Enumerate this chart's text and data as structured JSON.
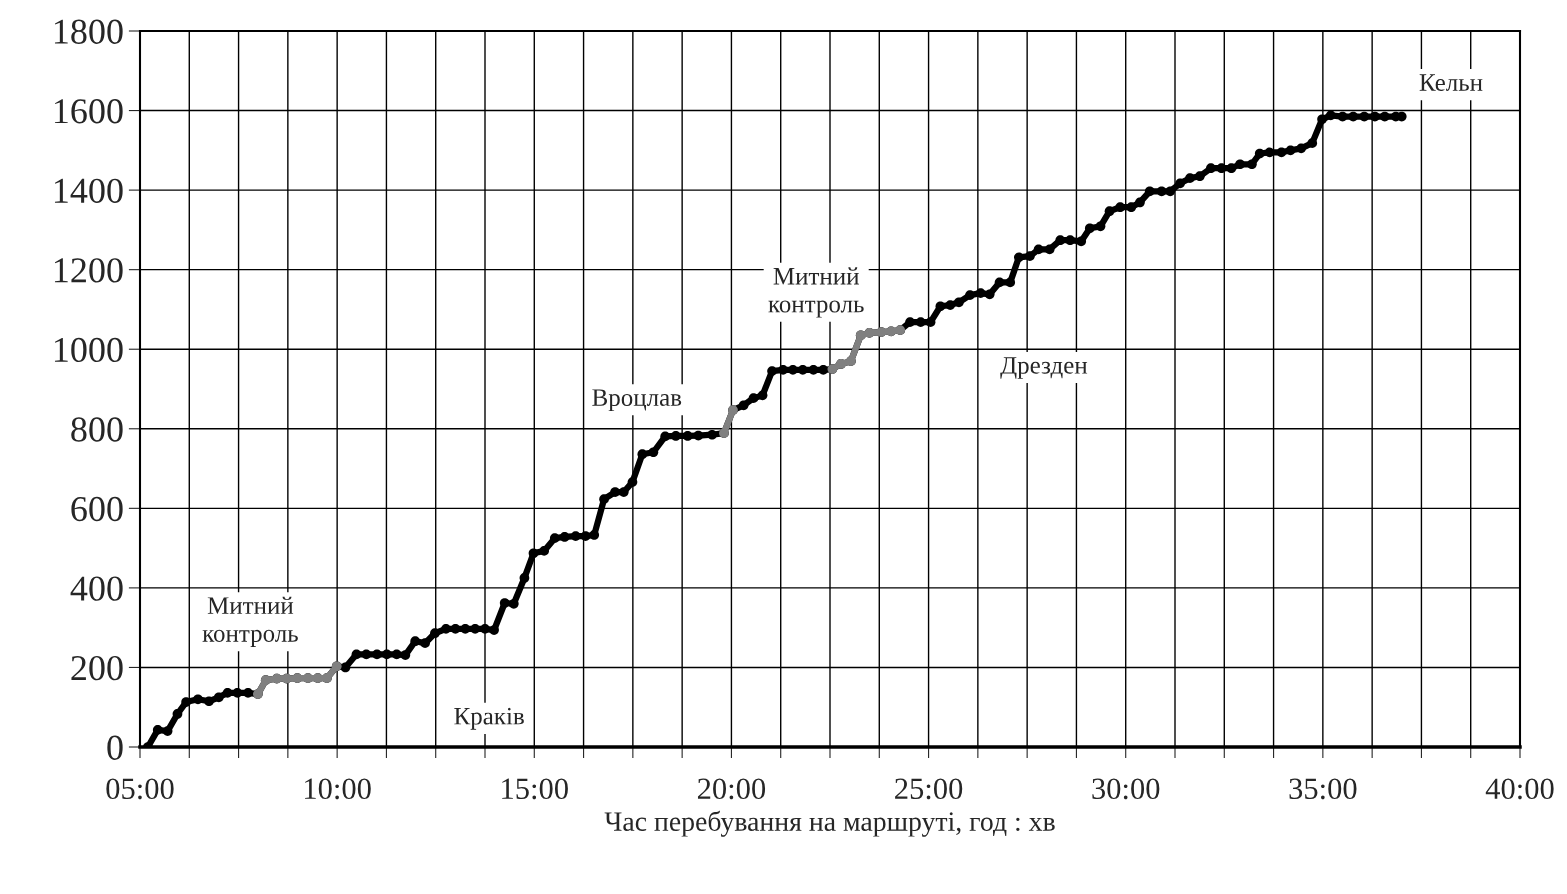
{
  "chart_data": {
    "type": "line",
    "xlabel": "Час перебування на маршруті, год : хв",
    "xlim": [
      5,
      40
    ],
    "ylim": [
      0,
      1800
    ],
    "xticks": [
      {
        "value": 5,
        "label": "05:00"
      },
      {
        "value": 6.25,
        "label": null
      },
      {
        "value": 7.5,
        "label": null
      },
      {
        "value": 8.75,
        "label": null
      },
      {
        "value": 10,
        "label": "10:00"
      },
      {
        "value": 11.25,
        "label": null
      },
      {
        "value": 12.5,
        "label": null
      },
      {
        "value": 13.75,
        "label": null
      },
      {
        "value": 15,
        "label": "15:00"
      },
      {
        "value": 16.25,
        "label": null
      },
      {
        "value": 17.5,
        "label": null
      },
      {
        "value": 18.75,
        "label": null
      },
      {
        "value": 20,
        "label": "20:00"
      },
      {
        "value": 21.25,
        "label": null
      },
      {
        "value": 22.5,
        "label": null
      },
      {
        "value": 23.75,
        "label": null
      },
      {
        "value": 25,
        "label": "25:00"
      },
      {
        "value": 26.25,
        "label": null
      },
      {
        "value": 27.5,
        "label": null
      },
      {
        "value": 28.75,
        "label": null
      },
      {
        "value": 30,
        "label": "30:00"
      },
      {
        "value": 31.25,
        "label": null
      },
      {
        "value": 32.5,
        "label": null
      },
      {
        "value": 33.75,
        "label": null
      },
      {
        "value": 35,
        "label": "35:00"
      },
      {
        "value": 36.25,
        "label": null
      },
      {
        "value": 37.5,
        "label": null
      },
      {
        "value": 38.75,
        "label": null
      },
      {
        "value": 40,
        "label": "40:00"
      }
    ],
    "yticks": [
      0,
      200,
      400,
      600,
      800,
      1000,
      1200,
      1400,
      1600,
      1800
    ],
    "grid": true,
    "marker": "circle",
    "line_style": "solid",
    "series": [
      {
        "color": "#000000",
        "x": [
          5.2,
          5.45,
          5.7,
          5.95,
          6.17,
          6.47,
          6.75,
          7.0,
          7.22,
          7.47,
          7.74,
          7.99,
          8.19,
          8.47,
          8.72,
          8.99,
          9.26,
          9.51,
          9.74,
          9.99,
          10.21,
          10.49,
          10.74,
          11.01,
          11.26,
          11.51,
          11.73,
          11.98,
          12.23,
          12.48,
          12.76,
          13.0,
          13.25,
          13.5,
          13.75,
          13.98,
          14.25,
          14.48,
          14.75,
          14.98,
          15.25,
          15.52,
          15.77,
          16.05,
          16.3,
          16.52,
          16.77,
          17.05,
          17.27,
          17.49,
          17.74,
          18.02,
          18.32,
          18.59,
          18.89,
          19.16,
          19.51,
          19.81,
          20.04,
          20.31,
          20.56,
          20.79,
          21.03,
          21.31,
          21.56,
          21.81,
          22.08,
          22.33,
          22.56,
          22.78,
          23.03,
          23.28,
          23.5,
          23.8,
          24.05,
          24.28,
          24.53,
          24.8,
          25.05,
          25.3,
          25.55,
          25.77,
          26.05,
          26.32,
          26.55,
          26.8,
          27.07,
          27.29,
          27.57,
          27.79,
          28.07,
          28.34,
          28.59,
          28.87,
          29.09,
          29.36,
          29.59,
          29.86,
          30.14,
          30.36,
          30.61,
          30.91,
          31.13,
          31.38,
          31.63,
          31.88,
          32.16,
          32.43,
          32.68,
          32.9,
          33.2,
          33.4,
          33.65,
          33.95,
          34.18,
          34.45,
          34.73,
          34.98,
          35.2,
          35.5,
          35.77,
          36.05,
          36.32,
          36.57,
          36.85,
          37.0
        ],
        "values": [
          0,
          43,
          40,
          83,
          113,
          120,
          115,
          125,
          136,
          136,
          136,
          133,
          168,
          172,
          172,
          173,
          173,
          173,
          173,
          203,
          200,
          233,
          233,
          233,
          233,
          233,
          231,
          266,
          261,
          286,
          297,
          297,
          297,
          297,
          297,
          294,
          362,
          360,
          425,
          487,
          493,
          525,
          528,
          530,
          530,
          533,
          623,
          641,
          641,
          666,
          736,
          741,
          781,
          782,
          782,
          783,
          785,
          789,
          847,
          859,
          877,
          884,
          945,
          948,
          948,
          948,
          948,
          948,
          950,
          963,
          970,
          1035,
          1041,
          1043,
          1045,
          1048,
          1068,
          1068,
          1068,
          1108,
          1111,
          1118,
          1136,
          1141,
          1138,
          1168,
          1168,
          1231,
          1234,
          1251,
          1251,
          1274,
          1274,
          1271,
          1304,
          1309,
          1347,
          1357,
          1357,
          1369,
          1397,
          1397,
          1397,
          1417,
          1430,
          1435,
          1455,
          1455,
          1455,
          1465,
          1465,
          1492,
          1495,
          1495,
          1500,
          1505,
          1518,
          1578,
          1588,
          1585,
          1585,
          1585,
          1585,
          1585,
          1585,
          1585
        ]
      },
      {
        "color": "#808080",
        "x": [
          7.99,
          8.19,
          8.47,
          8.72,
          8.99,
          9.26,
          9.51,
          9.74,
          9.99
        ],
        "values": [
          133,
          168,
          172,
          172,
          173,
          173,
          173,
          173,
          203
        ]
      },
      {
        "color": "#808080",
        "x": [
          19.81,
          20.04
        ],
        "values": [
          789,
          847
        ]
      },
      {
        "color": "#808080",
        "x": [
          22.56,
          22.78,
          23.03,
          23.28,
          23.5,
          23.8,
          24.05,
          24.28
        ],
        "values": [
          950,
          963,
          970,
          1035,
          1041,
          1043,
          1045,
          1048
        ]
      }
    ],
    "annotations": [
      "Митний\nконтроль",
      "Краків",
      "Вроцлав",
      "Митний\nконтроль",
      "Дрезден",
      "Кельн"
    ]
  }
}
